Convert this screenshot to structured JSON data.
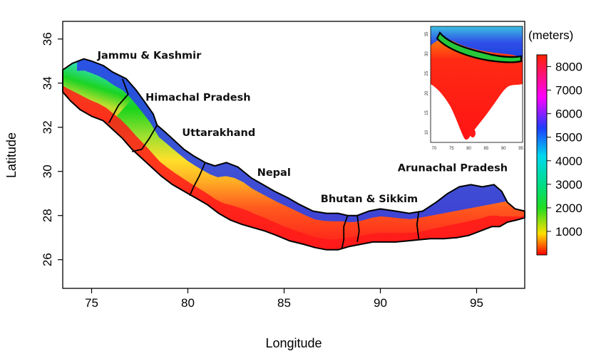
{
  "map": {
    "x_axis": {
      "title": "Longitude",
      "range": [
        73.5,
        97.5
      ],
      "ticks": [
        75,
        80,
        85,
        90,
        95
      ],
      "tick_labels": [
        "75",
        "80",
        "85",
        "90",
        "95"
      ]
    },
    "y_axis": {
      "title": "Latitude",
      "range": [
        24.7,
        36.8
      ],
      "ticks": [
        26,
        28,
        30,
        32,
        34,
        36
      ],
      "tick_labels": [
        "26",
        "28",
        "30",
        "32",
        "34",
        "36"
      ]
    },
    "regions": [
      {
        "label": "Jammu & Kashmir",
        "lon": 75.3,
        "lat": 35.1
      },
      {
        "label": "Himachal Pradesh",
        "lon": 77.8,
        "lat": 33.2
      },
      {
        "label": "Uttarakhand",
        "lon": 79.7,
        "lat": 31.6
      },
      {
        "label": "Nepal",
        "lon": 83.6,
        "lat": 29.8
      },
      {
        "label": "Bhutan & Sikkim",
        "lon": 86.9,
        "lat": 28.6
      },
      {
        "label": "Arunachal Pradesh",
        "lon": 90.9,
        "lat": 30.0
      }
    ],
    "colors": {
      "lowland": "#ff1a1a",
      "foothill": "#ff9a20",
      "midland": "#17d51a",
      "upland": "#8ad62e",
      "alpine": "#2a44e8",
      "outline": "#000000"
    }
  },
  "colorbar": {
    "unit": "(meters)",
    "ticks": [
      "1000",
      "2000",
      "3000",
      "4000",
      "5000",
      "6000",
      "7000",
      "8000"
    ],
    "range": [
      0,
      8500
    ],
    "tick_values": [
      1000,
      2000,
      3000,
      4000,
      5000,
      6000,
      7000,
      8000
    ],
    "stops": [
      {
        "value": 0,
        "color": "#ff0000"
      },
      {
        "value": 900,
        "color": "#ffde00"
      },
      {
        "value": 2000,
        "color": "#22dd22"
      },
      {
        "value": 3000,
        "color": "#00dd88"
      },
      {
        "value": 4200,
        "color": "#00d8ee"
      },
      {
        "value": 5400,
        "color": "#1e3cff"
      },
      {
        "value": 6700,
        "color": "#ff00ff"
      },
      {
        "value": 8500,
        "color": "#ff2200"
      }
    ]
  },
  "inset": {
    "x_ticks": [
      "70",
      "75",
      "80",
      "85",
      "90",
      "95"
    ],
    "y_ticks": [
      "10",
      "15",
      "20",
      "25",
      "30",
      "35"
    ],
    "x_range": [
      69,
      95.5
    ],
    "y_range": [
      7.5,
      37
    ],
    "x_values": [
      70,
      75,
      80,
      85,
      90,
      95
    ],
    "y_values": [
      10,
      15,
      20,
      25,
      30,
      35
    ]
  }
}
